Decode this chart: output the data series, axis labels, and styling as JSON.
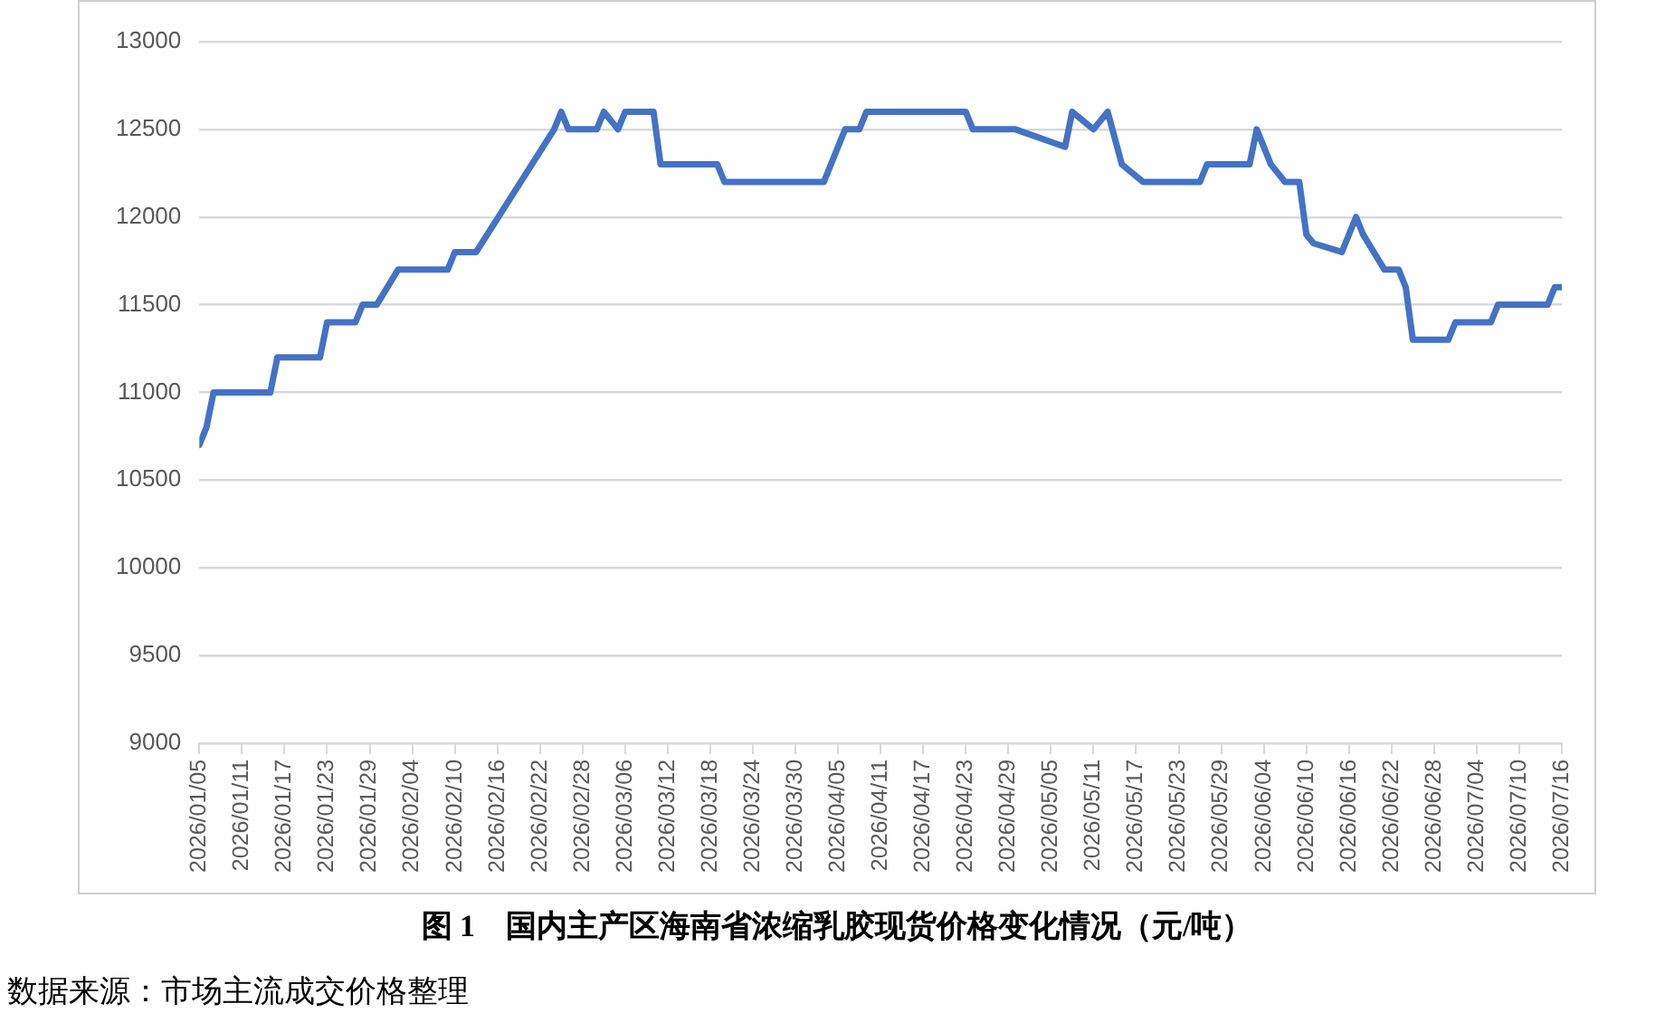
{
  "chart_data": {
    "type": "line",
    "title": "图 1　国内主产区海南省浓缩乳胶现货价格变化情况（元/吨）",
    "annotations": [
      "数据来源：市场主流成交价格整理"
    ],
    "x": [
      "2026-01-05",
      "2026-01-06",
      "2026-01-07",
      "2026-01-15",
      "2026-01-16",
      "2026-01-22",
      "2026-01-23",
      "2026-01-27",
      "2026-01-28",
      "2026-01-30",
      "2026-02-02",
      "2026-02-09",
      "2026-02-10",
      "2026-02-13",
      "2026-02-24",
      "2026-02-25",
      "2026-02-26",
      "2026-03-02",
      "2026-03-03",
      "2026-03-05",
      "2026-03-06",
      "2026-03-10",
      "2026-03-11",
      "2026-03-19",
      "2026-03-20",
      "2026-04-03",
      "2026-04-06",
      "2026-04-08",
      "2026-04-09",
      "2026-04-23",
      "2026-04-24",
      "2026-04-30",
      "2026-05-07",
      "2026-05-08",
      "2026-05-11",
      "2026-05-13",
      "2026-05-15",
      "2026-05-18",
      "2026-05-26",
      "2026-05-27",
      "2026-06-02",
      "2026-06-03",
      "2026-06-05",
      "2026-06-07",
      "2026-06-09",
      "2026-06-10",
      "2026-06-11",
      "2026-06-15",
      "2026-06-17",
      "2026-06-18",
      "2026-06-21",
      "2026-06-23",
      "2026-06-24",
      "2026-06-25",
      "2026-06-30",
      "2026-07-01",
      "2026-07-06",
      "2026-07-07",
      "2026-07-14",
      "2026-07-15",
      "2026-07-16"
    ],
    "series": [
      {
        "color": "#4472c4",
        "values": [
          10700,
          10800,
          11000,
          11000,
          11200,
          11200,
          11400,
          11400,
          11500,
          11500,
          11700,
          11700,
          11800,
          11800,
          12500,
          12600,
          12500,
          12500,
          12600,
          12500,
          12600,
          12600,
          12300,
          12300,
          12200,
          12200,
          12500,
          12500,
          12600,
          12600,
          12500,
          12500,
          12400,
          12600,
          12500,
          12600,
          12300,
          12200,
          12200,
          12300,
          12300,
          12500,
          12300,
          12200,
          12200,
          11900,
          11850,
          11800,
          12000,
          11900,
          11700,
          11700,
          11600,
          11300,
          11300,
          11400,
          11400,
          11500,
          11500,
          11600,
          11600
        ]
      }
    ],
    "xlim": [
      "2026-01-05",
      "2026-07-16"
    ],
    "xticks": [
      {
        "value": "2026-01-05",
        "label": "2026/01/05"
      },
      {
        "value": "2026-01-11",
        "label": "2026/01/11"
      },
      {
        "value": "2026-01-17",
        "label": "2026/01/17"
      },
      {
        "value": "2026-01-23",
        "label": "2026/01/23"
      },
      {
        "value": "2026-01-29",
        "label": "2026/01/29"
      },
      {
        "value": "2026-02-04",
        "label": "2026/02/04"
      },
      {
        "value": "2026-02-10",
        "label": "2026/02/10"
      },
      {
        "value": "2026-02-16",
        "label": "2026/02/16"
      },
      {
        "value": "2026-02-22",
        "label": "2026/02/22"
      },
      {
        "value": "2026-02-28",
        "label": "2026/02/28"
      },
      {
        "value": "2026-03-06",
        "label": "2026/03/06"
      },
      {
        "value": "2026-03-12",
        "label": "2026/03/12"
      },
      {
        "value": "2026-03-18",
        "label": "2026/03/18"
      },
      {
        "value": "2026-03-24",
        "label": "2026/03/24"
      },
      {
        "value": "2026-03-30",
        "label": "2026/03/30"
      },
      {
        "value": "2026-04-05",
        "label": "2026/04/05"
      },
      {
        "value": "2026-04-11",
        "label": "2026/04/11"
      },
      {
        "value": "2026-04-17",
        "label": "2026/04/17"
      },
      {
        "value": "2026-04-23",
        "label": "2026/04/23"
      },
      {
        "value": "2026-04-29",
        "label": "2026/04/29"
      },
      {
        "value": "2026-05-05",
        "label": "2026/05/05"
      },
      {
        "value": "2026-05-11",
        "label": "2026/05/11"
      },
      {
        "value": "2026-05-17",
        "label": "2026/05/17"
      },
      {
        "value": "2026-05-23",
        "label": "2026/05/23"
      },
      {
        "value": "2026-05-29",
        "label": "2026/05/29"
      },
      {
        "value": "2026-06-04",
        "label": "2026/06/04"
      },
      {
        "value": "2026-06-10",
        "label": "2026/06/10"
      },
      {
        "value": "2026-06-16",
        "label": "2026/06/16"
      },
      {
        "value": "2026-06-22",
        "label": "2026/06/22"
      },
      {
        "value": "2026-06-28",
        "label": "2026/06/28"
      },
      {
        "value": "2026-07-04",
        "label": "2026/07/04"
      },
      {
        "value": "2026-07-10",
        "label": "2026/07/10"
      },
      {
        "value": "2026-07-16",
        "label": "2026/07/16"
      }
    ],
    "ylim": [
      9000,
      13000
    ],
    "yticks": [
      9000,
      9500,
      10000,
      10500,
      11000,
      11500,
      12000,
      12500,
      13000
    ],
    "grid": "y",
    "legend": false,
    "marker": "none",
    "line_style": "solid"
  }
}
